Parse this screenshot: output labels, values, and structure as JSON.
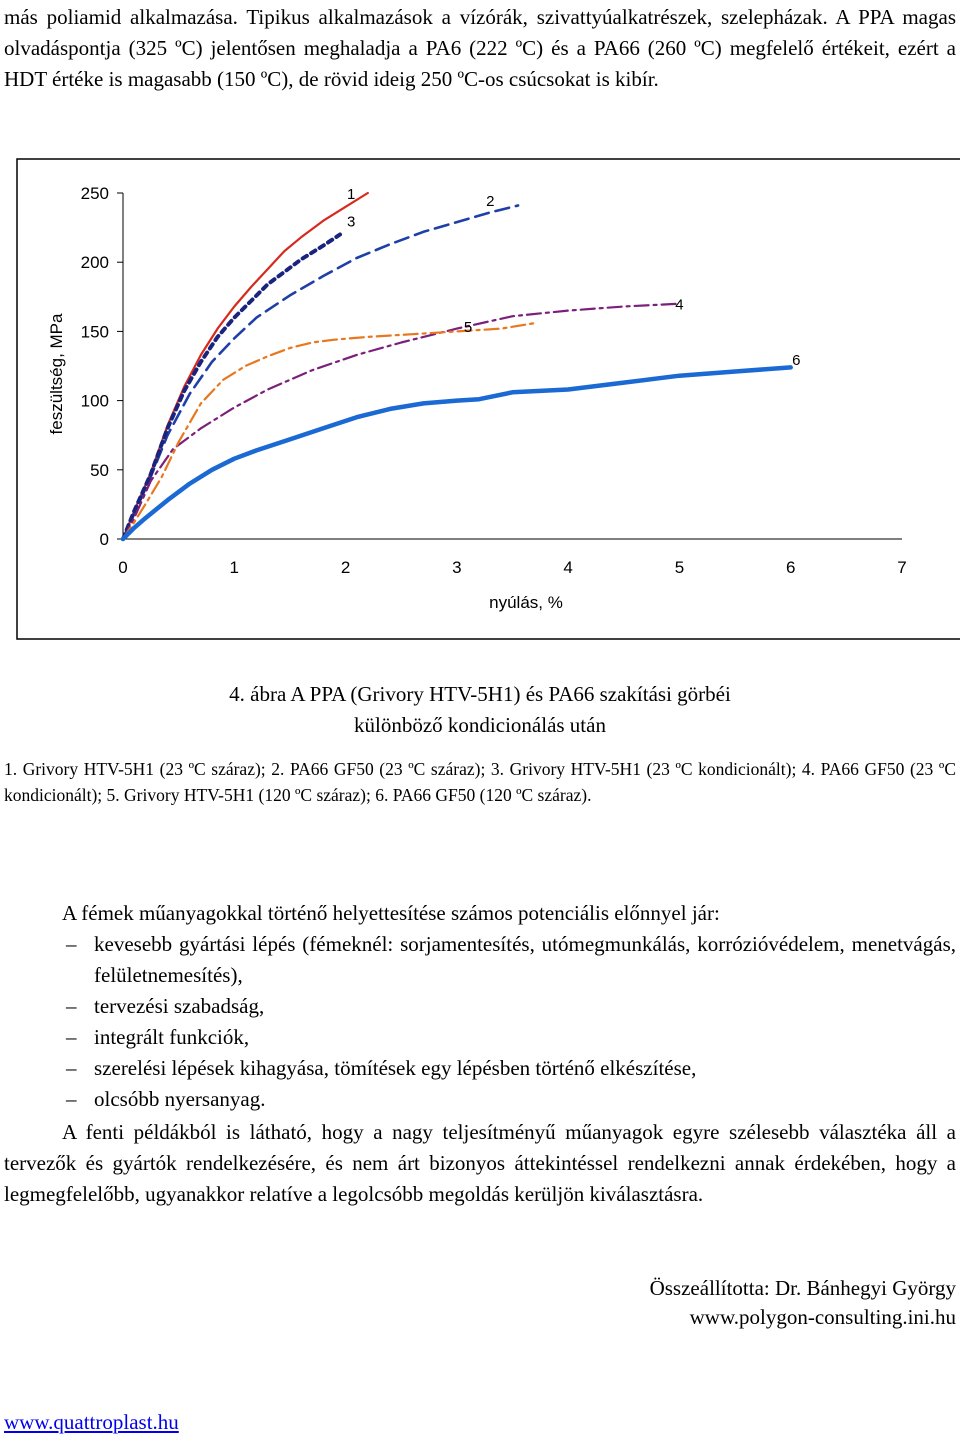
{
  "intro_paragraph": "más poliamid alkalmazása. Tipikus alkalmazások a vízórák, szivattyúalkatrészek, szelepházak. A PPA magas olvadáspontja (325 ºC) jelentősen meghaladja a PA6 (222 ºC) és a PA66 (260 ºC) megfelelő értékeit, ezért a HDT értéke is magasabb (150 ºC), de rövid ideig 250 ºC-os csúcsokat is kibír.",
  "figure": {
    "caption_line1": "4. ábra A PPA (Grivory HTV-5H1) és PA66 szakítási görbéi",
    "caption_line2": "különböző kondicionálás után",
    "legend": "1. Grivory HTV-5H1 (23 ºC száraz); 2. PA66 GF50 (23 ºC száraz); 3. Grivory HTV-5H1 (23 ºC kondicionált); 4. PA66 GF50 (23 ºC kondicionált); 5. Grivory HTV-5H1 (120 ºC száraz); 6. PA66 GF50 (120 ºC száraz)."
  },
  "chart_data": {
    "type": "line",
    "xlabel": "nyúlás, %",
    "ylabel": "feszültség, MPa",
    "xlim": [
      0,
      7
    ],
    "ylim": [
      0,
      250
    ],
    "xticks": [
      "0",
      "1",
      "2",
      "3",
      "4",
      "5",
      "6",
      "7"
    ],
    "yticks": [
      "0",
      "50",
      "100",
      "150",
      "200",
      "250"
    ],
    "grid": false,
    "legend": "none",
    "series": [
      {
        "name": "1",
        "color": "#d62a1e",
        "style": "solid",
        "x": [
          0,
          0.1,
          0.25,
          0.4,
          0.55,
          0.7,
          0.85,
          1.0,
          1.15,
          1.3,
          1.45,
          1.6,
          1.8,
          2.0,
          2.2
        ],
        "y": [
          0,
          20,
          48,
          82,
          110,
          133,
          152,
          168,
          182,
          195,
          208,
          218,
          230,
          240,
          250
        ]
      },
      {
        "name": "2",
        "color": "#1f3fa8",
        "style": "dashed",
        "x": [
          0,
          0.1,
          0.25,
          0.4,
          0.6,
          0.8,
          1.0,
          1.2,
          1.5,
          1.8,
          2.1,
          2.4,
          2.7,
          3.0,
          3.3,
          3.55
        ],
        "y": [
          0,
          18,
          45,
          75,
          105,
          128,
          145,
          160,
          176,
          190,
          203,
          213,
          222,
          229,
          236,
          241
        ]
      },
      {
        "name": "3",
        "color": "#1a237e",
        "style": "dotted",
        "x": [
          0,
          0.1,
          0.25,
          0.4,
          0.55,
          0.7,
          0.85,
          1.0,
          1.15,
          1.3,
          1.45,
          1.6,
          1.8,
          1.95
        ],
        "y": [
          0,
          20,
          47,
          80,
          107,
          128,
          146,
          160,
          172,
          184,
          193,
          202,
          212,
          220
        ]
      },
      {
        "name": "4",
        "color": "#7b1f7b",
        "style": "dashdot",
        "x": [
          0,
          0.1,
          0.25,
          0.45,
          0.7,
          1.0,
          1.3,
          1.7,
          2.1,
          2.5,
          3.0,
          3.5,
          4.0,
          4.5,
          5.0
        ],
        "y": [
          0,
          15,
          42,
          65,
          80,
          95,
          108,
          122,
          133,
          142,
          152,
          161,
          165,
          168,
          170
        ]
      },
      {
        "name": "5",
        "color": "#e8781e",
        "style": "dashdot",
        "x": [
          0,
          0.1,
          0.2,
          0.35,
          0.5,
          0.7,
          0.9,
          1.1,
          1.3,
          1.5,
          1.7,
          1.9,
          2.2,
          2.6,
          3.0,
          3.4,
          3.7
        ],
        "y": [
          0,
          12,
          25,
          45,
          70,
          98,
          115,
          125,
          132,
          138,
          142,
          144,
          146,
          148,
          150,
          152,
          156
        ]
      },
      {
        "name": "6",
        "color": "#1b6ad4",
        "style": "solid",
        "x": [
          0,
          0.1,
          0.2,
          0.4,
          0.6,
          0.8,
          1.0,
          1.2,
          1.5,
          1.8,
          2.1,
          2.4,
          2.7,
          3.0,
          3.2,
          3.5,
          4.0,
          4.5,
          5.0,
          5.5,
          6.0
        ],
        "y": [
          0,
          8,
          15,
          28,
          40,
          50,
          58,
          64,
          72,
          80,
          88,
          94,
          98,
          100,
          101,
          106,
          108,
          113,
          118,
          121,
          124
        ]
      }
    ],
    "curve_labels": [
      {
        "text": "1",
        "x": 2.05,
        "y": 250
      },
      {
        "text": "3",
        "x": 2.05,
        "y": 230
      },
      {
        "text": "2",
        "x": 3.3,
        "y": 245
      },
      {
        "text": "4",
        "x": 5.0,
        "y": 170
      },
      {
        "text": "5",
        "x": 3.1,
        "y": 154
      },
      {
        "text": "6",
        "x": 6.05,
        "y": 130
      }
    ]
  },
  "body_paragraph_intro": "A fémek műanyagokkal történő helyettesítése számos potenciális előnnyel jár:",
  "bullets": [
    "kevesebb gyártási lépés (fémeknél: sorjamentesítés, utómegmunkálás, korrózióvédelem, menetvágás, felületnemesítés),",
    "tervezési szabadság,",
    "integrált funkciók,",
    "szerelési lépések kihagyása, tömítések egy lépésben történő elkészítése,",
    "olcsóbb nyersanyag."
  ],
  "closing_paragraph": "A fenti példákból is látható, hogy a nagy teljesítményű műanyagok egyre szélesebb választéka áll a tervezők és gyártók rendelkezésére, és nem árt bizonyos áttekintéssel rendelkezni annak érdekében, hogy a legmegfelelőbb, ugyanakkor relatíve a legolcsóbb megoldás kerüljön kiválasztásra.",
  "author_line": "Összeállította: Dr. Bánhegyi György",
  "author_url": "www.polygon-consulting.ini.hu",
  "footer_link": "www.quattroplast.hu"
}
